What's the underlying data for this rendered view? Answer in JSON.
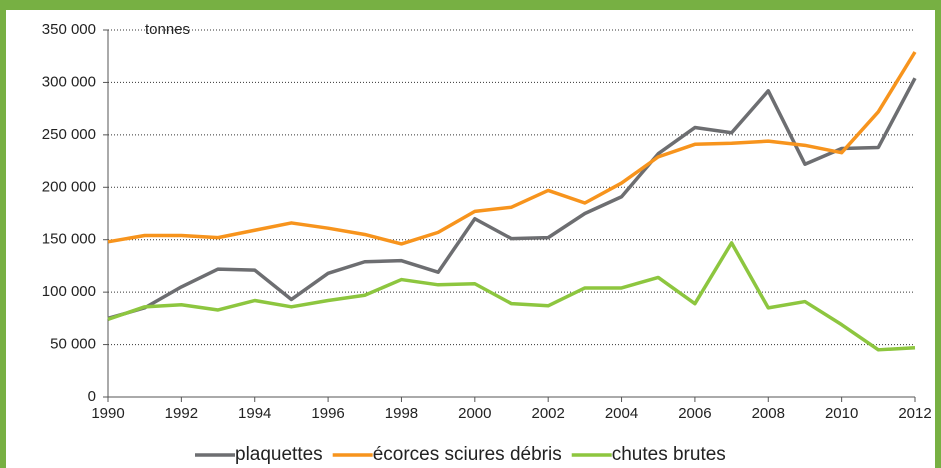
{
  "chart_data": {
    "type": "line",
    "annotation": "tonnes",
    "x": [
      1990,
      1991,
      1992,
      1993,
      1994,
      1995,
      1996,
      1997,
      1998,
      1999,
      2000,
      2001,
      2002,
      2003,
      2004,
      2005,
      2006,
      2007,
      2008,
      2009,
      2010,
      2011,
      2012
    ],
    "series": [
      {
        "name": "plaquettes",
        "color": "#6d6e71",
        "values": [
          75000,
          85000,
          105000,
          122000,
          121000,
          93000,
          118000,
          129000,
          130000,
          119000,
          170000,
          151000,
          152000,
          175000,
          191000,
          232000,
          257000,
          252000,
          292000,
          222000,
          237000,
          238000,
          304000
        ]
      },
      {
        "name": "écorces sciures débris",
        "color": "#f7941d",
        "values": [
          148000,
          154000,
          154000,
          152000,
          159000,
          166000,
          161000,
          155000,
          146000,
          157000,
          177000,
          181000,
          197000,
          185000,
          204000,
          229000,
          241000,
          242000,
          244000,
          240000,
          233000,
          272000,
          329000
        ]
      },
      {
        "name": "chutes brutes",
        "color": "#8dc63f",
        "values": [
          74000,
          86000,
          88000,
          83000,
          92000,
          86000,
          92000,
          97000,
          112000,
          107000,
          108000,
          89000,
          87000,
          104000,
          104000,
          114000,
          89000,
          147000,
          85000,
          91000,
          69000,
          45000,
          47000
        ]
      }
    ],
    "xlim": [
      1990,
      2012
    ],
    "xticks": [
      1990,
      1992,
      1994,
      1996,
      1998,
      2000,
      2002,
      2004,
      2006,
      2008,
      2010,
      2012
    ],
    "ylim": [
      0,
      350000
    ],
    "yticks": [
      0,
      {
        "value": 50000,
        "label": "50 000"
      },
      {
        "value": 100000,
        "label": "100 000"
      },
      {
        "value": 150000,
        "label": "150 000"
      },
      {
        "value": 200000,
        "label": "200 000"
      },
      {
        "value": 250000,
        "label": "250 000"
      },
      {
        "value": 300000,
        "label": "300 000"
      },
      {
        "value": 350000,
        "label": "350 000"
      }
    ],
    "grid": true,
    "legend": "bottom"
  }
}
